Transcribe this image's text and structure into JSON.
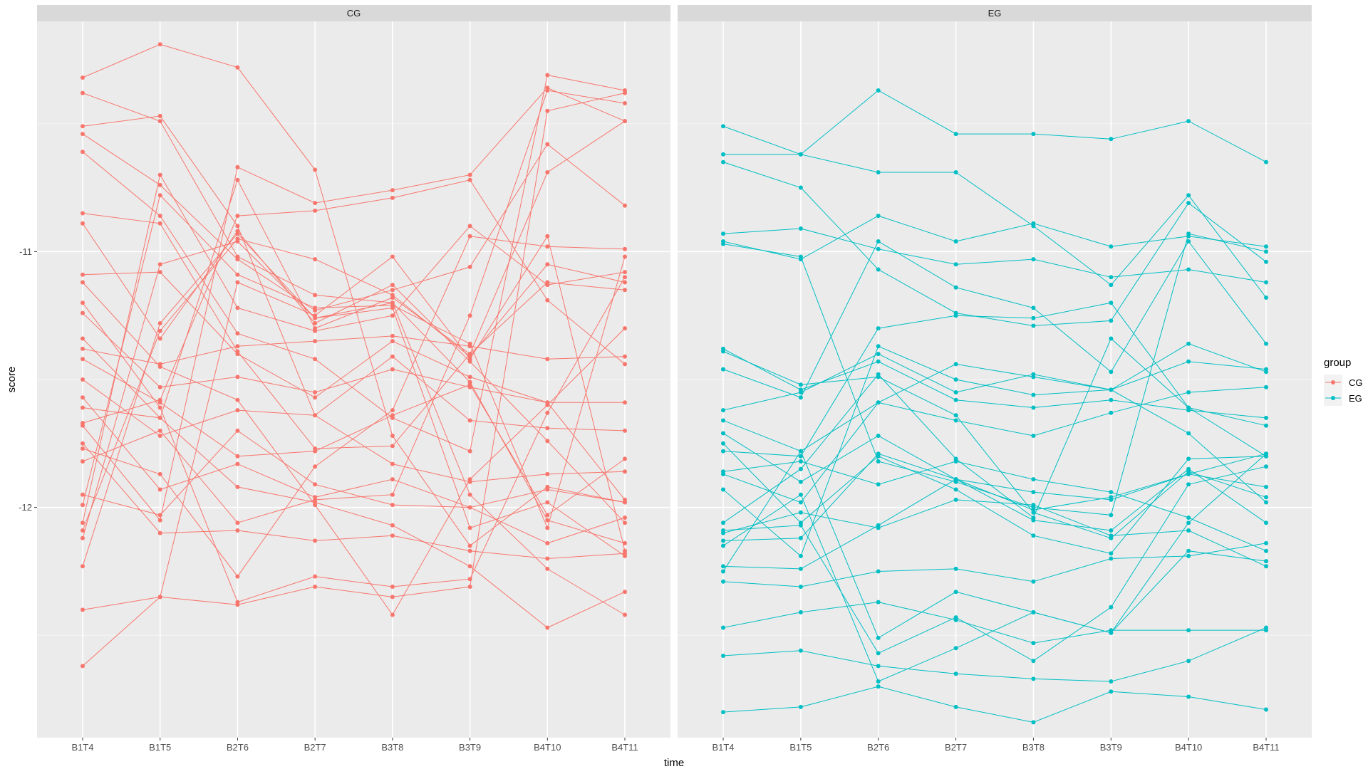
{
  "chart_data": {
    "type": "line",
    "facets": [
      "CG",
      "EG"
    ],
    "categories": [
      "B1T4",
      "B1T5",
      "B2T6",
      "B2T7",
      "B3T8",
      "B3T9",
      "B4T10",
      "B4T11"
    ],
    "xlabel": "time",
    "ylabel": "score",
    "ylim": [
      -12.9,
      -10.1
    ],
    "yticks": [
      -12,
      -11
    ],
    "grid": true,
    "legend": {
      "title": "group",
      "position": "right",
      "entries": [
        {
          "name": "CG",
          "color": "#F8766D"
        },
        {
          "name": "EG",
          "color": "#00BFC4"
        }
      ]
    },
    "panels": [
      {
        "facet": "CG",
        "color": "#F8766D",
        "series": [
          {
            "values": [
              -10.32,
              -10.19,
              -10.28,
              -10.68,
              -11.72,
              -12.15,
              -11.92,
              -11.98
            ]
          },
          {
            "values": [
              -10.38,
              -10.49,
              -11.02,
              -11.17,
              -11.2,
              -11.51,
              -12.05,
              -12.14
            ]
          },
          {
            "values": [
              -10.51,
              -10.47,
              -10.9,
              -11.64,
              -11.83,
              -11.9,
              -11.87,
              -11.86
            ]
          },
          {
            "values": [
              -10.54,
              -10.74,
              -11.03,
              -11.23,
              -11.15,
              -11.06,
              -10.58,
              -10.82
            ]
          },
          {
            "values": [
              -10.61,
              -10.86,
              -11.32,
              -11.42,
              -11.65,
              -11.78,
              -10.31,
              -10.37
            ]
          },
          {
            "values": [
              -10.85,
              -10.89,
              -11.39,
              -11.77,
              -11.76,
              -11.4,
              -10.69,
              -10.49
            ]
          },
          {
            "values": [
              -10.89,
              -11.34,
              -10.92,
              -11.28,
              -11.13,
              -11.43,
              -11.74,
              -12.06
            ]
          },
          {
            "values": [
              -11.09,
              -11.08,
              -11.4,
              -11.57,
              -11.35,
              -11.49,
              -11.59,
              -11.97
            ]
          },
          {
            "values": [
              -11.12,
              -11.45,
              -11.58,
              -11.99,
              -12.42,
              -11.89,
              -11.6,
              -11.3
            ]
          },
          {
            "values": [
              -11.2,
              -11.61,
              -12.37,
              -12.27,
              -12.31,
              -12.28,
              -11.63,
              -11.1
            ]
          },
          {
            "values": [
              -11.24,
              -11.53,
              -11.49,
              -11.55,
              -11.46,
              -11.53,
              -11.59,
              -11.59
            ]
          },
          {
            "values": [
              -11.34,
              -11.65,
              -11.92,
              -11.98,
              -12.07,
              -12.23,
              -12.47,
              -12.33
            ]
          },
          {
            "values": [
              -11.42,
              -11.59,
              -11.8,
              -11.78,
              -11.64,
              -11.52,
              -12.03,
              -11.81
            ]
          },
          {
            "values": [
              -11.5,
              -11.72,
              -11.62,
              -11.64,
              -11.41,
              -11.66,
              -11.69,
              -11.7
            ]
          },
          {
            "values": [
              -11.61,
              -11.65,
              -10.72,
              -11.3,
              -11.18,
              -11.4,
              -11.12,
              -11.15
            ]
          },
          {
            "values": [
              -11.67,
              -11.58,
              -10.86,
              -10.84,
              -10.79,
              -10.72,
              -11.19,
              -11.44
            ]
          },
          {
            "values": [
              -11.68,
              -12.05,
              -10.67,
              -10.81,
              -10.76,
              -10.7,
              -10.36,
              -10.49
            ]
          },
          {
            "values": [
              -11.77,
              -11.87,
              -12.27,
              -11.84,
              -11.62,
              -10.94,
              -10.98,
              -10.99
            ]
          },
          {
            "values": [
              -11.82,
              -11.7,
              -12.06,
              -11.97,
              -11.95,
              -11.25,
              -10.37,
              -10.42
            ]
          },
          {
            "values": [
              -11.99,
              -10.78,
              -11.09,
              -11.22,
              -11.21,
              -11.36,
              -12.08,
              -11.02
            ]
          },
          {
            "values": [
              -12.06,
              -10.7,
              -11.22,
              -11.31,
              -11.25,
              -10.9,
              -11.13,
              -11.08
            ]
          },
          {
            "values": [
              -12.09,
              -11.31,
              -10.95,
              -11.03,
              -11.17,
              -11.41,
              -11.05,
              -11.12
            ]
          },
          {
            "values": [
              -12.12,
              -11.05,
              -10.96,
              -11.26,
              -11.22,
              -12.08,
              -11.98,
              -12.19
            ]
          },
          {
            "values": [
              -12.23,
              -11.28,
              -10.93,
              -11.26,
              -11.2,
              -11.95,
              -12.24,
              -12.42
            ]
          },
          {
            "values": [
              -12.4,
              -12.35,
              -12.38,
              -12.31,
              -12.35,
              -12.31,
              -10.45,
              -10.38
            ]
          },
          {
            "values": [
              -12.62,
              -12.35,
              -11.12,
              -11.25,
              -11.02,
              -11.42,
              -10.94,
              -12.17
            ]
          },
          {
            "values": [
              -11.38,
              -11.44,
              -11.37,
              -11.35,
              -11.33,
              -11.37,
              -11.42,
              -11.41
            ]
          },
          {
            "values": [
              -11.57,
              -11.93,
              -11.83,
              -11.96,
              -11.89,
              -12.0,
              -11.93,
              -11.98
            ]
          },
          {
            "values": [
              -11.75,
              -12.1,
              -12.09,
              -12.13,
              -12.11,
              -12.17,
              -12.2,
              -12.18
            ]
          },
          {
            "values": [
              -11.95,
              -12.03,
              -11.7,
              -11.91,
              -11.99,
              -12.0,
              -12.14,
              -12.04
            ]
          }
        ]
      },
      {
        "facet": "EG",
        "color": "#00BFC4",
        "series": [
          {
            "values": [
              -10.51,
              -10.62,
              -10.37,
              -10.54,
              -10.54,
              -10.56,
              -10.49,
              -10.65
            ]
          },
          {
            "values": [
              -10.62,
              -10.62,
              -10.69,
              -10.69,
              -10.9,
              -11.13,
              -10.78,
              -11.18
            ]
          },
          {
            "values": [
              -10.65,
              -10.75,
              -11.07,
              -11.24,
              -11.29,
              -11.27,
              -10.81,
              -11.04
            ]
          },
          {
            "values": [
              -10.93,
              -10.91,
              -10.99,
              -11.05,
              -11.03,
              -11.1,
              -11.07,
              -11.12
            ]
          },
          {
            "values": [
              -10.96,
              -11.03,
              -10.86,
              -10.96,
              -10.89,
              -10.98,
              -10.94,
              -10.98
            ]
          },
          {
            "values": [
              -10.97,
              -11.02,
              -11.82,
              -11.9,
              -12.0,
              -12.03,
              -10.93,
              -11.0
            ]
          },
          {
            "values": [
              -11.39,
              -11.52,
              -11.49,
              -11.64,
              -12.02,
              -12.12,
              -11.86,
              -11.96
            ]
          },
          {
            "values": [
              -11.46,
              -11.57,
              -10.96,
              -11.14,
              -11.22,
              -11.47,
              -10.96,
              -11.36
            ]
          },
          {
            "values": [
              -11.62,
              -11.55,
              -11.4,
              -11.55,
              -11.48,
              -11.54,
              -11.43,
              -11.46
            ]
          },
          {
            "values": [
              -11.66,
              -11.78,
              -11.59,
              -11.66,
              -11.72,
              -11.63,
              -11.55,
              -11.53
            ]
          },
          {
            "values": [
              -11.71,
              -11.9,
              -11.72,
              -11.89,
              -11.94,
              -11.97,
              -11.87,
              -11.92
            ]
          },
          {
            "values": [
              -11.75,
              -12.06,
              -11.8,
              -11.93,
              -12.11,
              -12.18,
              -11.81,
              -11.8
            ]
          },
          {
            "values": [
              -11.78,
              -11.8,
              -11.3,
              -11.25,
              -11.26,
              -11.2,
              -11.61,
              -11.68
            ]
          },
          {
            "values": [
              -11.87,
              -11.98,
              -11.59,
              -11.44,
              -11.49,
              -11.54,
              -11.71,
              -11.98
            ]
          },
          {
            "values": [
              -11.93,
              -12.19,
              -11.37,
              -11.5,
              -11.56,
              -11.54,
              -11.36,
              -11.47
            ]
          },
          {
            "values": [
              -12.06,
              -11.85,
              -11.48,
              -11.81,
              -12.04,
              -11.34,
              -11.61,
              -11.8
            ]
          },
          {
            "values": [
              -12.13,
              -12.12,
              -11.79,
              -11.89,
              -12.05,
              -12.09,
              -11.85,
              -12.06
            ]
          },
          {
            "values": [
              -12.23,
              -12.24,
              -12.07,
              -11.89,
              -12.01,
              -11.96,
              -11.87,
              -11.79
            ]
          },
          {
            "values": [
              -12.29,
              -12.31,
              -12.25,
              -12.24,
              -12.29,
              -12.2,
              -12.19,
              -12.14
            ]
          },
          {
            "values": [
              -12.47,
              -12.41,
              -12.37,
              -12.44,
              -12.53,
              -12.48,
              -12.48,
              -12.48
            ]
          },
          {
            "values": [
              -12.58,
              -12.56,
              -12.62,
              -12.65,
              -12.67,
              -12.68,
              -12.6,
              -12.47
            ]
          },
          {
            "values": [
              -12.09,
              -12.07,
              -12.57,
              -12.43,
              -12.6,
              -12.39,
              -11.91,
              -11.84
            ]
          },
          {
            "values": [
              -12.15,
              -11.95,
              -12.68,
              -12.55,
              -12.41,
              -12.49,
              -12.06,
              -11.79
            ]
          },
          {
            "values": [
              -12.25,
              -11.78,
              -12.51,
              -12.33,
              -12.41,
              -12.49,
              -12.17,
              -12.21
            ]
          },
          {
            "values": [
              -12.8,
              -12.78,
              -12.7,
              -12.78,
              -12.84,
              -12.72,
              -12.74,
              -12.79
            ]
          },
          {
            "values": [
              -11.38,
              -11.54,
              -11.43,
              -11.58,
              -11.61,
              -11.58,
              -11.62,
              -11.65
            ]
          },
          {
            "values": [
              -12.1,
              -12.02,
              -12.08,
              -11.97,
              -11.99,
              -12.11,
              -12.09,
              -12.23
            ]
          },
          {
            "values": [
              -11.86,
              -11.82,
              -11.91,
              -11.82,
              -11.89,
              -11.94,
              -12.04,
              -12.17
            ]
          }
        ]
      }
    ]
  }
}
